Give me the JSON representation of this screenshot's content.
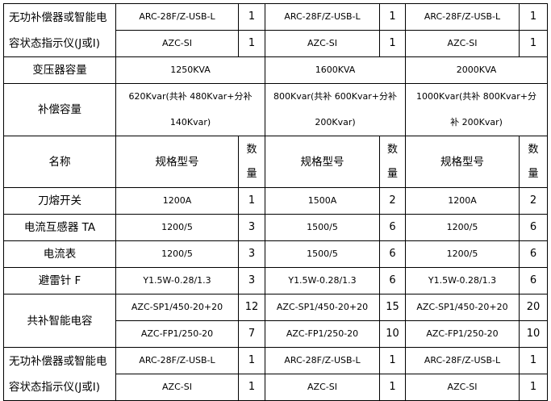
{
  "top_indicator": {
    "label": "无功补偿器或智能电容状态指示仪(J或I)",
    "rows": [
      {
        "spec": "ARC-28F/Z-USB-L",
        "qty": "1"
      },
      {
        "spec": "AZC-SI",
        "qty": "1"
      }
    ]
  },
  "transformer": {
    "label": "变压器容量",
    "values": [
      "1250KVA",
      "1600KVA",
      "2000KVA"
    ]
  },
  "compensation": {
    "label": "补偿容量",
    "values": [
      "620Kvar(共补 480Kvar+分补 140Kvar)",
      "800Kvar(共补 600Kvar+分补 200Kvar)",
      "1000Kvar(共补 800Kvar+分补 200Kvar)"
    ]
  },
  "headers": {
    "name": "名称",
    "spec": "规格型号",
    "qty": "数量"
  },
  "items": [
    {
      "name": "刀熔开关",
      "cols": [
        [
          "1200A",
          "1"
        ],
        [
          "1500A",
          "2"
        ],
        [
          "1200A",
          "2"
        ]
      ]
    },
    {
      "name": "电流互感器 TA",
      "cols": [
        [
          "1200/5",
          "3"
        ],
        [
          "1500/5",
          "6"
        ],
        [
          "1200/5",
          "6"
        ]
      ]
    },
    {
      "name": "电流表",
      "cols": [
        [
          "1200/5",
          "3"
        ],
        [
          "1500/5",
          "6"
        ],
        [
          "1200/5",
          "6"
        ]
      ]
    },
    {
      "name": "避雷针 F",
      "cols": [
        [
          "Y1.5W-0.28/1.3",
          "3"
        ],
        [
          "Y1.5W-0.28/1.3",
          "6"
        ],
        [
          "Y1.5W-0.28/1.3",
          "6"
        ]
      ]
    }
  ],
  "capacitor": {
    "name": "共补智能电容",
    "rows": [
      [
        [
          "AZC-SP1/450-20+20",
          "12"
        ],
        [
          "AZC-SP1/450-20+20",
          "15"
        ],
        [
          "AZC-SP1/450-20+20",
          "20"
        ]
      ],
      [
        [
          "AZC-FP1/250-20",
          "7"
        ],
        [
          "AZC-FP1/250-20",
          "10"
        ],
        [
          "AZC-FP1/250-20",
          "10"
        ]
      ]
    ]
  },
  "bottom_indicator": {
    "label": "无功补偿器或智能电容状态指示仪(J或I)",
    "rows": [
      [
        [
          "ARC-28F/Z-USB-L",
          "1"
        ],
        [
          "ARC-28F/Z-USB-L",
          "1"
        ],
        [
          "ARC-28F/Z-USB-L",
          "1"
        ]
      ],
      [
        [
          "AZC-SI",
          "1"
        ],
        [
          "AZC-SI",
          "1"
        ],
        [
          "AZC-SI",
          "1"
        ]
      ]
    ]
  }
}
